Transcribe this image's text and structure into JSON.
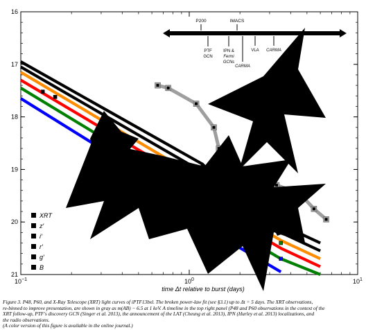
{
  "chart_data": {
    "type": "line",
    "title": "",
    "xlabel": "time Δt relative to burst (days)",
    "ylabel": "",
    "xscale": "log",
    "xlim": [
      0.1,
      10
    ],
    "ylim": [
      21,
      16
    ],
    "y_inverted": true,
    "x_ticks": [
      {
        "value": 0.1,
        "base": "10",
        "exp": "−1"
      },
      {
        "value": 1,
        "base": "10",
        "exp": "0"
      },
      {
        "value": 10,
        "base": "10",
        "exp": "1"
      }
    ],
    "y_ticks": [
      16,
      17,
      18,
      19,
      20,
      21
    ],
    "legend_position": "bottom-left",
    "legend": [
      "XRT",
      "z′",
      "i′",
      "r′",
      "g′",
      "B"
    ],
    "series": [
      {
        "name": "XRT",
        "color": "#000000",
        "model": [
          [
            0.1,
            16.95
          ],
          [
            1.2,
            18.9
          ],
          [
            1.9,
            19.55
          ],
          [
            3.5,
            20.05
          ],
          [
            6.0,
            20.4
          ]
        ],
        "points": [
          [
            0.65,
            17.4
          ],
          [
            0.75,
            17.45
          ],
          [
            1.1,
            17.75
          ],
          [
            1.4,
            18.2
          ],
          [
            1.5,
            18.6
          ],
          [
            2.5,
            19.15
          ],
          [
            3.3,
            19.3
          ],
          [
            4.5,
            19.45
          ],
          [
            5.5,
            19.75
          ],
          [
            6.5,
            19.95
          ]
        ]
      },
      {
        "name": "z′",
        "color": "#000000",
        "model": [
          [
            0.1,
            17.05
          ],
          [
            1.2,
            19.05
          ],
          [
            1.9,
            19.7
          ],
          [
            3.5,
            20.2
          ],
          [
            6.0,
            20.55
          ]
        ],
        "points": [
          [
            0.135,
            17.52
          ],
          [
            0.16,
            17.62
          ],
          [
            1.2,
            18.95
          ],
          [
            3.5,
            19.95
          ],
          [
            4.3,
            20.1
          ]
        ]
      },
      {
        "name": "i′",
        "color": "#ff8c00",
        "model": [
          [
            0.1,
            17.15
          ],
          [
            1.2,
            19.2
          ],
          [
            1.9,
            19.85
          ],
          [
            3.5,
            20.35
          ],
          [
            6.0,
            20.7
          ]
        ],
        "points": [
          [
            1.2,
            19.1
          ],
          [
            3.5,
            20.05
          ],
          [
            4.3,
            20.2
          ]
        ]
      },
      {
        "name": "r′",
        "color": "#ff0000",
        "model": [
          [
            0.1,
            17.3
          ],
          [
            1.2,
            19.35
          ],
          [
            1.9,
            20.0
          ],
          [
            3.5,
            20.5
          ],
          [
            6.0,
            20.85
          ]
        ],
        "points": [
          [
            1.2,
            19.25
          ],
          [
            3.5,
            20.2
          ],
          [
            4.3,
            20.3
          ]
        ]
      },
      {
        "name": "g′",
        "color": "#008000",
        "model": [
          [
            0.1,
            17.45
          ],
          [
            1.2,
            19.55
          ],
          [
            1.9,
            20.2
          ],
          [
            3.5,
            20.7
          ],
          [
            6.0,
            21.0
          ]
        ],
        "points": [
          [
            1.2,
            19.45
          ],
          [
            3.5,
            20.4
          ]
        ]
      },
      {
        "name": "B",
        "color": "#0000ff",
        "model": [
          [
            0.1,
            17.65
          ],
          [
            1.2,
            19.8
          ],
          [
            1.9,
            20.45
          ],
          [
            3.5,
            20.95
          ]
        ],
        "points": [
          [
            1.2,
            19.65
          ],
          [
            3.5,
            20.7
          ]
        ]
      }
    ],
    "timeline": {
      "top_labels": [
        "P200",
        "IMACS"
      ],
      "bottom_labels": [
        "PTF\nGCN",
        "IPN &\nFermi\nGCNs",
        "CARMA",
        "VLA",
        "CARMA"
      ]
    }
  },
  "caption": {
    "lines": [
      "Figure 3.  P48, P60, and X-Ray Telescope (XRT) light curves of iPTF13bxl.  The broken power-law fit (see §3.1) up to Δt = 5 days. The XRT observations,",
      "re-binned to improve presentation, are shown in gray as m(AB) − 6.5 at 1 keV. A timeline in the top right panel (P48 and P60 observations in the context of the",
      "XRT follow-up, PTF's discovery GCN (Singer et al. 2013), the announcement of the LAT (Cheung et al. 2013), IPN (Hurley et al. 2013) localizations, and",
      "the radio observations.",
      "(A color version of this figure is available in the online journal.)"
    ]
  },
  "colors": {
    "axis": "#000000",
    "xrt_gray": "#9e9e9e",
    "overlay": "#000000"
  }
}
